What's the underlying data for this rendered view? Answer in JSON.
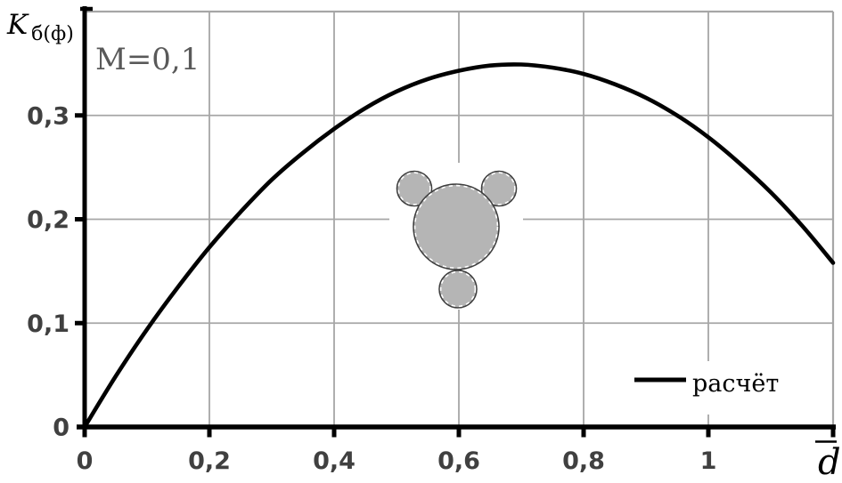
{
  "chart_data": {
    "type": "line",
    "title": "",
    "xlabel": "d̄",
    "xlabel_letter": "d",
    "ylabel": "Kб(ф)",
    "ylabel_main": "K",
    "ylabel_sub": "б(ф)",
    "annotation": "М=0,1",
    "xlim": [
      0,
      1.2
    ],
    "ylim": [
      0,
      0.4
    ],
    "grid": true,
    "legend_position": "lower right",
    "x_tick_values": [
      0,
      0.2,
      0.4,
      0.6,
      0.8,
      1.0
    ],
    "x_tick_labels": [
      "0",
      "0,2",
      "0,4",
      "0,6",
      "0,8",
      "1"
    ],
    "y_tick_values": [
      0,
      0.1,
      0.2,
      0.3
    ],
    "y_tick_labels": [
      "0",
      "0,1",
      "0,2",
      "0,3"
    ],
    "series": [
      {
        "name": "расчёт",
        "color": "#000000",
        "x": [
          0,
          0.05,
          0.1,
          0.15,
          0.2,
          0.25,
          0.3,
          0.35,
          0.4,
          0.45,
          0.5,
          0.55,
          0.6,
          0.65,
          0.7,
          0.75,
          0.8,
          0.85,
          0.9,
          0.95,
          1.0,
          1.05,
          1.1,
          1.15,
          1.2
        ],
        "y": [
          0,
          0.049,
          0.094,
          0.135,
          0.173,
          0.207,
          0.238,
          0.264,
          0.287,
          0.307,
          0.323,
          0.335,
          0.343,
          0.348,
          0.349,
          0.346,
          0.34,
          0.33,
          0.317,
          0.3,
          0.279,
          0.254,
          0.226,
          0.194,
          0.158
        ]
      }
    ],
    "peak": {
      "x": 0.69,
      "y": 0.349
    }
  },
  "inset_shape": {
    "name": "circle-cluster",
    "description": "one large circle with three small attached circles",
    "fill": "#b5b5b5",
    "outline": "#3f3f3f"
  },
  "colors": {
    "curve": "#000000",
    "grid": "#a6a6a6",
    "axis": "#000000",
    "tick_labels": "#404040",
    "annotation": "#595959",
    "legend_text": "#000000",
    "background": "#ffffff"
  }
}
